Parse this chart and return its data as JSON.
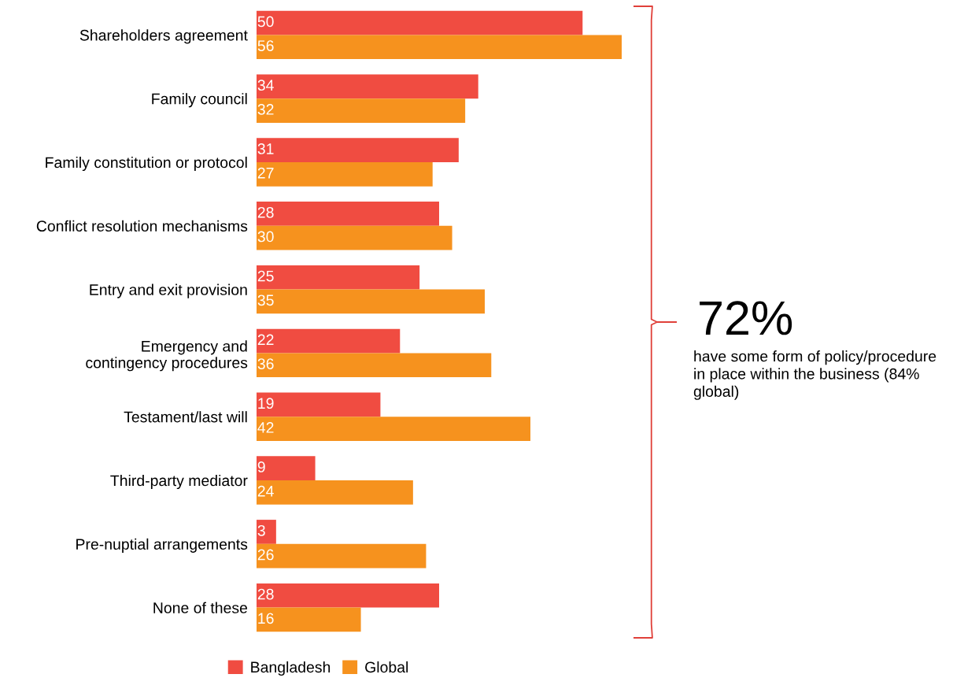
{
  "chart_data": {
    "type": "bar",
    "orientation": "horizontal",
    "categories": [
      "Shareholders agreement",
      "Family council",
      "Family constitution or protocol",
      "Conflict resolution mechanisms",
      "Entry and exit provision",
      "Emergency and\ncontingency procedures",
      "Testament/last will",
      "Third-party mediator",
      "Pre-nuptial arrangements",
      "None of these"
    ],
    "series": [
      {
        "name": "Bangladesh",
        "color": "#f04c41",
        "values": [
          50,
          34,
          31,
          28,
          25,
          22,
          19,
          9,
          3,
          28
        ]
      },
      {
        "name": "Global",
        "color": "#f6921e",
        "values": [
          56,
          32,
          27,
          30,
          35,
          36,
          42,
          24,
          26,
          16
        ]
      }
    ],
    "data_labels": true,
    "legend": "bottom",
    "tick_labels": "y",
    "grid": false,
    "annotations": [
      "72%",
      "have some form of policy/procedure in place within the business (84% global)"
    ]
  }
}
